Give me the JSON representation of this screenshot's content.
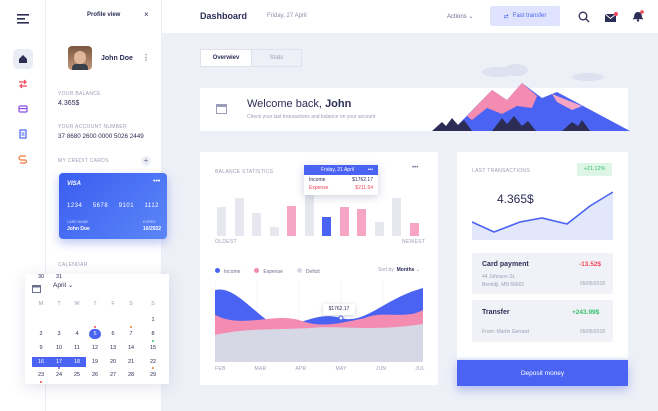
{
  "profile": {
    "title": "Profile view",
    "close": "×",
    "name": "John Doe"
  },
  "balance": {
    "label": "YOUR BALANCE",
    "value": "4.365$"
  },
  "account": {
    "label": "YOUR ACCOUNT NUMBER",
    "value": "37 8680 2600 0000 5026 2449"
  },
  "cards": {
    "label": "MY CREDIT CARDS",
    "brand": "VISA",
    "number": [
      "1234",
      "5678",
      "9101",
      "1112"
    ],
    "name_label": "CARD NAME",
    "name": "John Doe",
    "expiry_label": "EXPIRY",
    "expiry": "10/2022"
  },
  "calendar": {
    "label": "CALENDAR",
    "month": "April",
    "weekdays": [
      "M",
      "T",
      "W",
      "T",
      "F",
      "S",
      "S"
    ],
    "days": [
      "1",
      "2",
      "3",
      "4",
      "5",
      "6",
      "7",
      "8",
      "9",
      "10",
      "11",
      "12",
      "13",
      "14",
      "15",
      "16",
      "17",
      "18",
      "19",
      "20",
      "21",
      "22",
      "23",
      "24",
      "25",
      "26",
      "27",
      "28",
      "29",
      "30",
      "31"
    ]
  },
  "header": {
    "title": "Dashboard",
    "date": "Friday, 27 April",
    "actions": "Actions",
    "fast_transfer": "Fast transfer"
  },
  "tabs": [
    "Overwiev",
    "Stats"
  ],
  "welcome": {
    "greeting": "Welcome back, ",
    "name": "John",
    "subtitle": "Check your last transactions and balance on your account"
  },
  "stats": {
    "title": "BALANCE STATISTICS",
    "oldest": "OLDEST",
    "newest": "NEWEST",
    "more": "•••",
    "tooltip": {
      "date": "Friday, 21 April",
      "income_label": "Income",
      "income": "$1762.17",
      "expense_label": "Expense",
      "expense": "$211.64"
    },
    "legend": [
      "Income",
      "Expense",
      "Deficit"
    ],
    "sort_label": "Sort by:",
    "sort_value": "Months",
    "line_tip": "$1762.17",
    "months": [
      "FEB",
      "MAR",
      "APR",
      "MAY",
      "JUN",
      "JUL"
    ]
  },
  "chart_data": {
    "type": "bar",
    "bars": [
      {
        "value": 0.62,
        "kind": "income"
      },
      {
        "value": 0.82,
        "kind": "income"
      },
      {
        "value": 0.5,
        "kind": "income"
      },
      {
        "value": 0.2,
        "kind": "income"
      },
      {
        "value": 0.66,
        "kind": "expense"
      },
      {
        "value": 0.92,
        "kind": "income"
      },
      {
        "value": 0.42,
        "kind": "active"
      },
      {
        "value": 0.62,
        "kind": "expense"
      },
      {
        "value": 0.58,
        "kind": "expense"
      },
      {
        "value": 0.3,
        "kind": "income"
      },
      {
        "value": 0.82,
        "kind": "income"
      },
      {
        "value": 0.28,
        "kind": "expense"
      }
    ]
  },
  "transactions": {
    "title": "LAST TRANSACTIONS",
    "change": "+21.12%",
    "total": "4.365$",
    "items": [
      {
        "title": "Card payment",
        "amount": "-13.52$",
        "line1": "44 Johnson St.",
        "line2": "Bemidji, MN 56601",
        "date": "05/05/2018"
      },
      {
        "title": "Transfer",
        "amount": "+243.99$",
        "line1": "From: Martin Gerrard",
        "line2": "",
        "date": "05/05/2018"
      }
    ],
    "deposit": "Deposit money"
  },
  "colors": {
    "accent": "#4a63f2",
    "pink": "#f48bb0",
    "green": "#36c06e",
    "red": "#f0475a"
  }
}
